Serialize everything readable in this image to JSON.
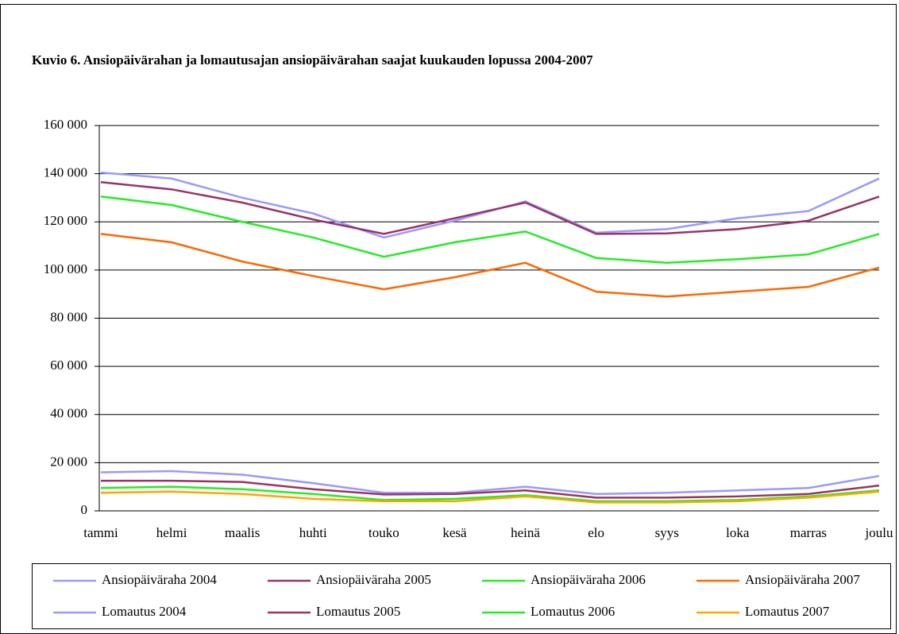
{
  "chart_data": {
    "type": "line",
    "title": "Kuvio 6. Ansiopäivärahan ja lomautusajan ansiopäivärahan saajat kuukauden lopussa 2004-2007",
    "categories": [
      "tammi",
      "helmi",
      "maalis",
      "huhti",
      "touko",
      "kesä",
      "heinä",
      "elo",
      "syys",
      "loka",
      "marras",
      "joulu"
    ],
    "ylim": [
      0,
      160000
    ],
    "yticks": [
      0,
      {
        "value": 20000,
        "label": "20 000"
      },
      {
        "value": 40000,
        "label": "40 000"
      },
      {
        "value": 60000,
        "label": "60 000"
      },
      {
        "value": 80000,
        "label": "80 000"
      },
      {
        "value": 100000,
        "label": "100 000"
      },
      {
        "value": 120000,
        "label": "120 000"
      },
      {
        "value": 140000,
        "label": "140 000"
      },
      {
        "value": 160000,
        "label": "160 000"
      }
    ],
    "grid": true,
    "legend": "bottom",
    "series": [
      {
        "name": "Ansiopäiväraha 2004",
        "color": "#9999ff",
        "values": [
          140500,
          138000,
          130000,
          123500,
          113500,
          120500,
          128500,
          115500,
          117000,
          121500,
          124500,
          138000
        ]
      },
      {
        "name": "Ansiopäiväraha 2005",
        "color": "#993366",
        "values": [
          136500,
          133500,
          128000,
          121000,
          115000,
          121500,
          128000,
          115000,
          115200,
          117000,
          120500,
          130500
        ]
      },
      {
        "name": "Ansiopäiväraha 2006",
        "color": "#22ee22",
        "values": [
          130500,
          127000,
          120000,
          113500,
          105500,
          111500,
          116000,
          105000,
          103000,
          104500,
          106500,
          115000
        ]
      },
      {
        "name": "Ansiopäiväraha 2007",
        "color": "#ff6600",
        "values": [
          115000,
          111500,
          103500,
          97500,
          92000,
          97000,
          103000,
          91000,
          89000,
          91000,
          93000,
          101000
        ]
      },
      {
        "name": "Lomautus 2004",
        "color": "#9999ff",
        "values": [
          16000,
          16500,
          15000,
          11500,
          7500,
          7500,
          10000,
          7000,
          7500,
          8500,
          9500,
          14500
        ]
      },
      {
        "name": "Lomautus 2005",
        "color": "#993366",
        "values": [
          12500,
          12500,
          12000,
          9000,
          6800,
          7000,
          8500,
          5500,
          5500,
          6000,
          7000,
          10500
        ]
      },
      {
        "name": "Lomautus 2006",
        "color": "#22ee22",
        "values": [
          9500,
          10000,
          9000,
          7000,
          4500,
          5000,
          6500,
          4000,
          4000,
          4500,
          6000,
          8500
        ]
      },
      {
        "name": "Lomautus 2007",
        "color": "#ffa500",
        "values": [
          7500,
          8000,
          7000,
          5000,
          4000,
          4000,
          6000,
          3500,
          3500,
          4000,
          5500,
          8000
        ]
      }
    ]
  }
}
